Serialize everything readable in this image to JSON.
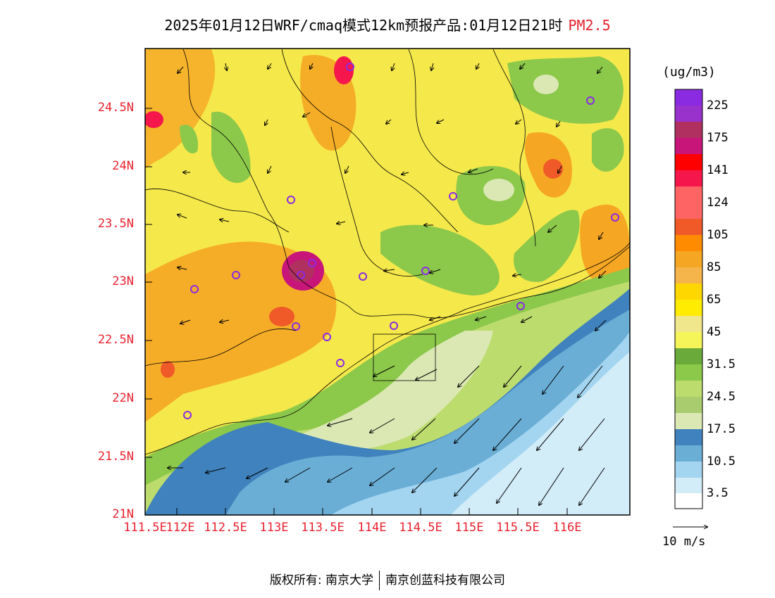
{
  "title": {
    "main": "2025年01月12日WRF/cmaq模式12km预报产品:01月12日21时",
    "variable": "PM2.5"
  },
  "axes": {
    "lat_labels": [
      "24.5N",
      "24N",
      "23.5N",
      "23N",
      "22.5N",
      "22N",
      "21.5N",
      "21N"
    ],
    "lon_labels": [
      "111.5E",
      "112E",
      "112.5E",
      "113E",
      "113.5E",
      "114E",
      "114.5E",
      "115E",
      "115.5E",
      "116E"
    ]
  },
  "legend": {
    "units": "(ug/m3)",
    "labels": [
      "225",
      "175",
      "141",
      "124",
      "105",
      "85",
      "65",
      "45",
      "31.5",
      "24.5",
      "17.5",
      "10.5",
      "3.5"
    ],
    "colors": [
      "#8a2be2",
      "#9932cc",
      "#b03060",
      "#c8157a",
      "#ff0000",
      "#f5164b",
      "#ff6464",
      "#f05a28",
      "#ff8c00",
      "#f5a623",
      "#ffd700",
      "#ffec00",
      "#f0e68c",
      "#f5f55a",
      "#6aaa3a",
      "#8cc84a",
      "#bcdc6e",
      "#dbe8b4",
      "#4682b4",
      "#6aaed6",
      "#a3d5f0",
      "#d2ecf8",
      "#ffffff"
    ]
  },
  "wind_reference": {
    "label": "10 m/s"
  },
  "footer": {
    "left": "版权所有: 南京大学",
    "right": "南京创蓝科技有限公司"
  },
  "colors": {
    "accent_red": "#e8222e",
    "sea_deep": "#3f82bd",
    "sea_light": "#a3d5f0",
    "land_yellow": "#f5e84a"
  }
}
